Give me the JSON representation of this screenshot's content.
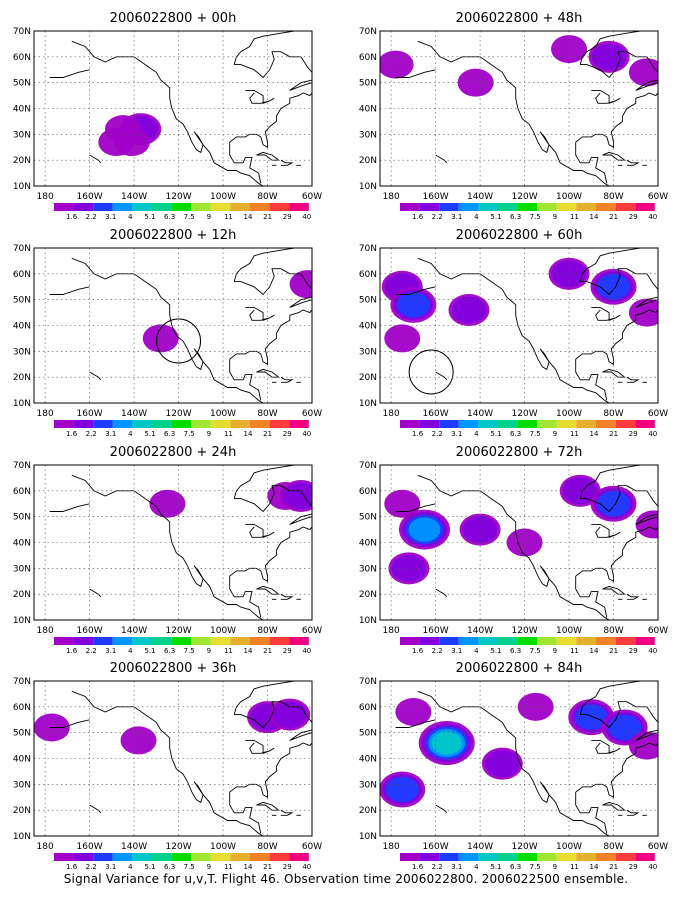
{
  "figure": {
    "caption": "Signal Variance for u,v,T. Flight 46. Observation time 2006022800. 2006022500 ensemble.",
    "lat_labels": [
      "10N",
      "20N",
      "30N",
      "40N",
      "50N",
      "60N",
      "70N"
    ],
    "lon_labels": [
      "180",
      "160W",
      "140W",
      "120W",
      "100W",
      "80W",
      "60W"
    ],
    "colorbar": {
      "labels": [
        "1.6",
        "2.2",
        "3.1",
        "4",
        "5.1",
        "6.3",
        "7.5",
        "9",
        "11",
        "14",
        "21",
        "29",
        "40"
      ],
      "colors": [
        "#a000c8",
        "#8200dc",
        "#1e3cff",
        "#0096ff",
        "#00c8c8",
        "#00d28c",
        "#00dc00",
        "#a0e632",
        "#e6dc32",
        "#e6af2d",
        "#f08228",
        "#fa3c3c",
        "#f00082"
      ]
    },
    "panels": [
      {
        "title": "2006022800 + 00h",
        "fields": [
          {
            "lon": -137,
            "lat": 32,
            "level": 1
          },
          {
            "lon": -145,
            "lat": 32,
            "level": 0
          },
          {
            "lon": -148,
            "lat": 27,
            "level": 0
          },
          {
            "lon": -141,
            "lat": 27,
            "level": 0
          }
        ],
        "rings": []
      },
      {
        "title": "2006022800 + 12h",
        "fields": [
          {
            "lon": -128,
            "lat": 35,
            "level": 0
          },
          {
            "lon": -62,
            "lat": 56,
            "level": 0
          }
        ],
        "rings": [
          {
            "lon": -120,
            "lat": 34
          }
        ]
      },
      {
        "title": "2006022800 + 24h",
        "fields": [
          {
            "lon": -125,
            "lat": 55,
            "level": 0
          },
          {
            "lon": -72,
            "lat": 58,
            "level": 0
          },
          {
            "lon": -65,
            "lat": 58,
            "level": 1
          }
        ],
        "rings": []
      },
      {
        "title": "2006022800 + 36h",
        "fields": [
          {
            "lon": -177,
            "lat": 52,
            "level": 0
          },
          {
            "lon": -80,
            "lat": 56,
            "level": 1
          },
          {
            "lon": -70,
            "lat": 57,
            "level": 1
          },
          {
            "lon": -138,
            "lat": 47,
            "level": 0
          }
        ],
        "rings": []
      },
      {
        "title": "2006022800 + 48h",
        "fields": [
          {
            "lon": -178,
            "lat": 57,
            "level": 0
          },
          {
            "lon": -142,
            "lat": 50,
            "level": 0
          },
          {
            "lon": -100,
            "lat": 63,
            "level": 0
          },
          {
            "lon": -82,
            "lat": 60,
            "level": 1
          },
          {
            "lon": -65,
            "lat": 54,
            "level": 0
          }
        ],
        "rings": []
      },
      {
        "title": "2006022800 + 60h",
        "fields": [
          {
            "lon": -175,
            "lat": 55,
            "level": 1
          },
          {
            "lon": -170,
            "lat": 48,
            "level": 2
          },
          {
            "lon": -175,
            "lat": 35,
            "level": 0
          },
          {
            "lon": -145,
            "lat": 46,
            "level": 1
          },
          {
            "lon": -100,
            "lat": 60,
            "level": 1
          },
          {
            "lon": -80,
            "lat": 55,
            "level": 2
          },
          {
            "lon": -65,
            "lat": 45,
            "level": 0
          }
        ],
        "rings": [
          {
            "lon": -162,
            "lat": 22
          }
        ]
      },
      {
        "title": "2006022800 + 72h",
        "fields": [
          {
            "lon": -175,
            "lat": 55,
            "level": 0
          },
          {
            "lon": -165,
            "lat": 45,
            "level": 3
          },
          {
            "lon": -172,
            "lat": 30,
            "level": 1
          },
          {
            "lon": -140,
            "lat": 45,
            "level": 1
          },
          {
            "lon": -120,
            "lat": 40,
            "level": 0
          },
          {
            "lon": -95,
            "lat": 60,
            "level": 1
          },
          {
            "lon": -80,
            "lat": 55,
            "level": 2
          },
          {
            "lon": -62,
            "lat": 47,
            "level": 0
          }
        ],
        "rings": []
      },
      {
        "title": "2006022800 + 84h",
        "fields": [
          {
            "lon": -170,
            "lat": 58,
            "level": 0
          },
          {
            "lon": -155,
            "lat": 46,
            "level": 4
          },
          {
            "lon": -175,
            "lat": 28,
            "level": 2
          },
          {
            "lon": -130,
            "lat": 38,
            "level": 1
          },
          {
            "lon": -115,
            "lat": 60,
            "level": 0
          },
          {
            "lon": -90,
            "lat": 56,
            "level": 2
          },
          {
            "lon": -75,
            "lat": 52,
            "level": 2
          },
          {
            "lon": -65,
            "lat": 45,
            "level": 0
          }
        ],
        "rings": []
      }
    ]
  }
}
